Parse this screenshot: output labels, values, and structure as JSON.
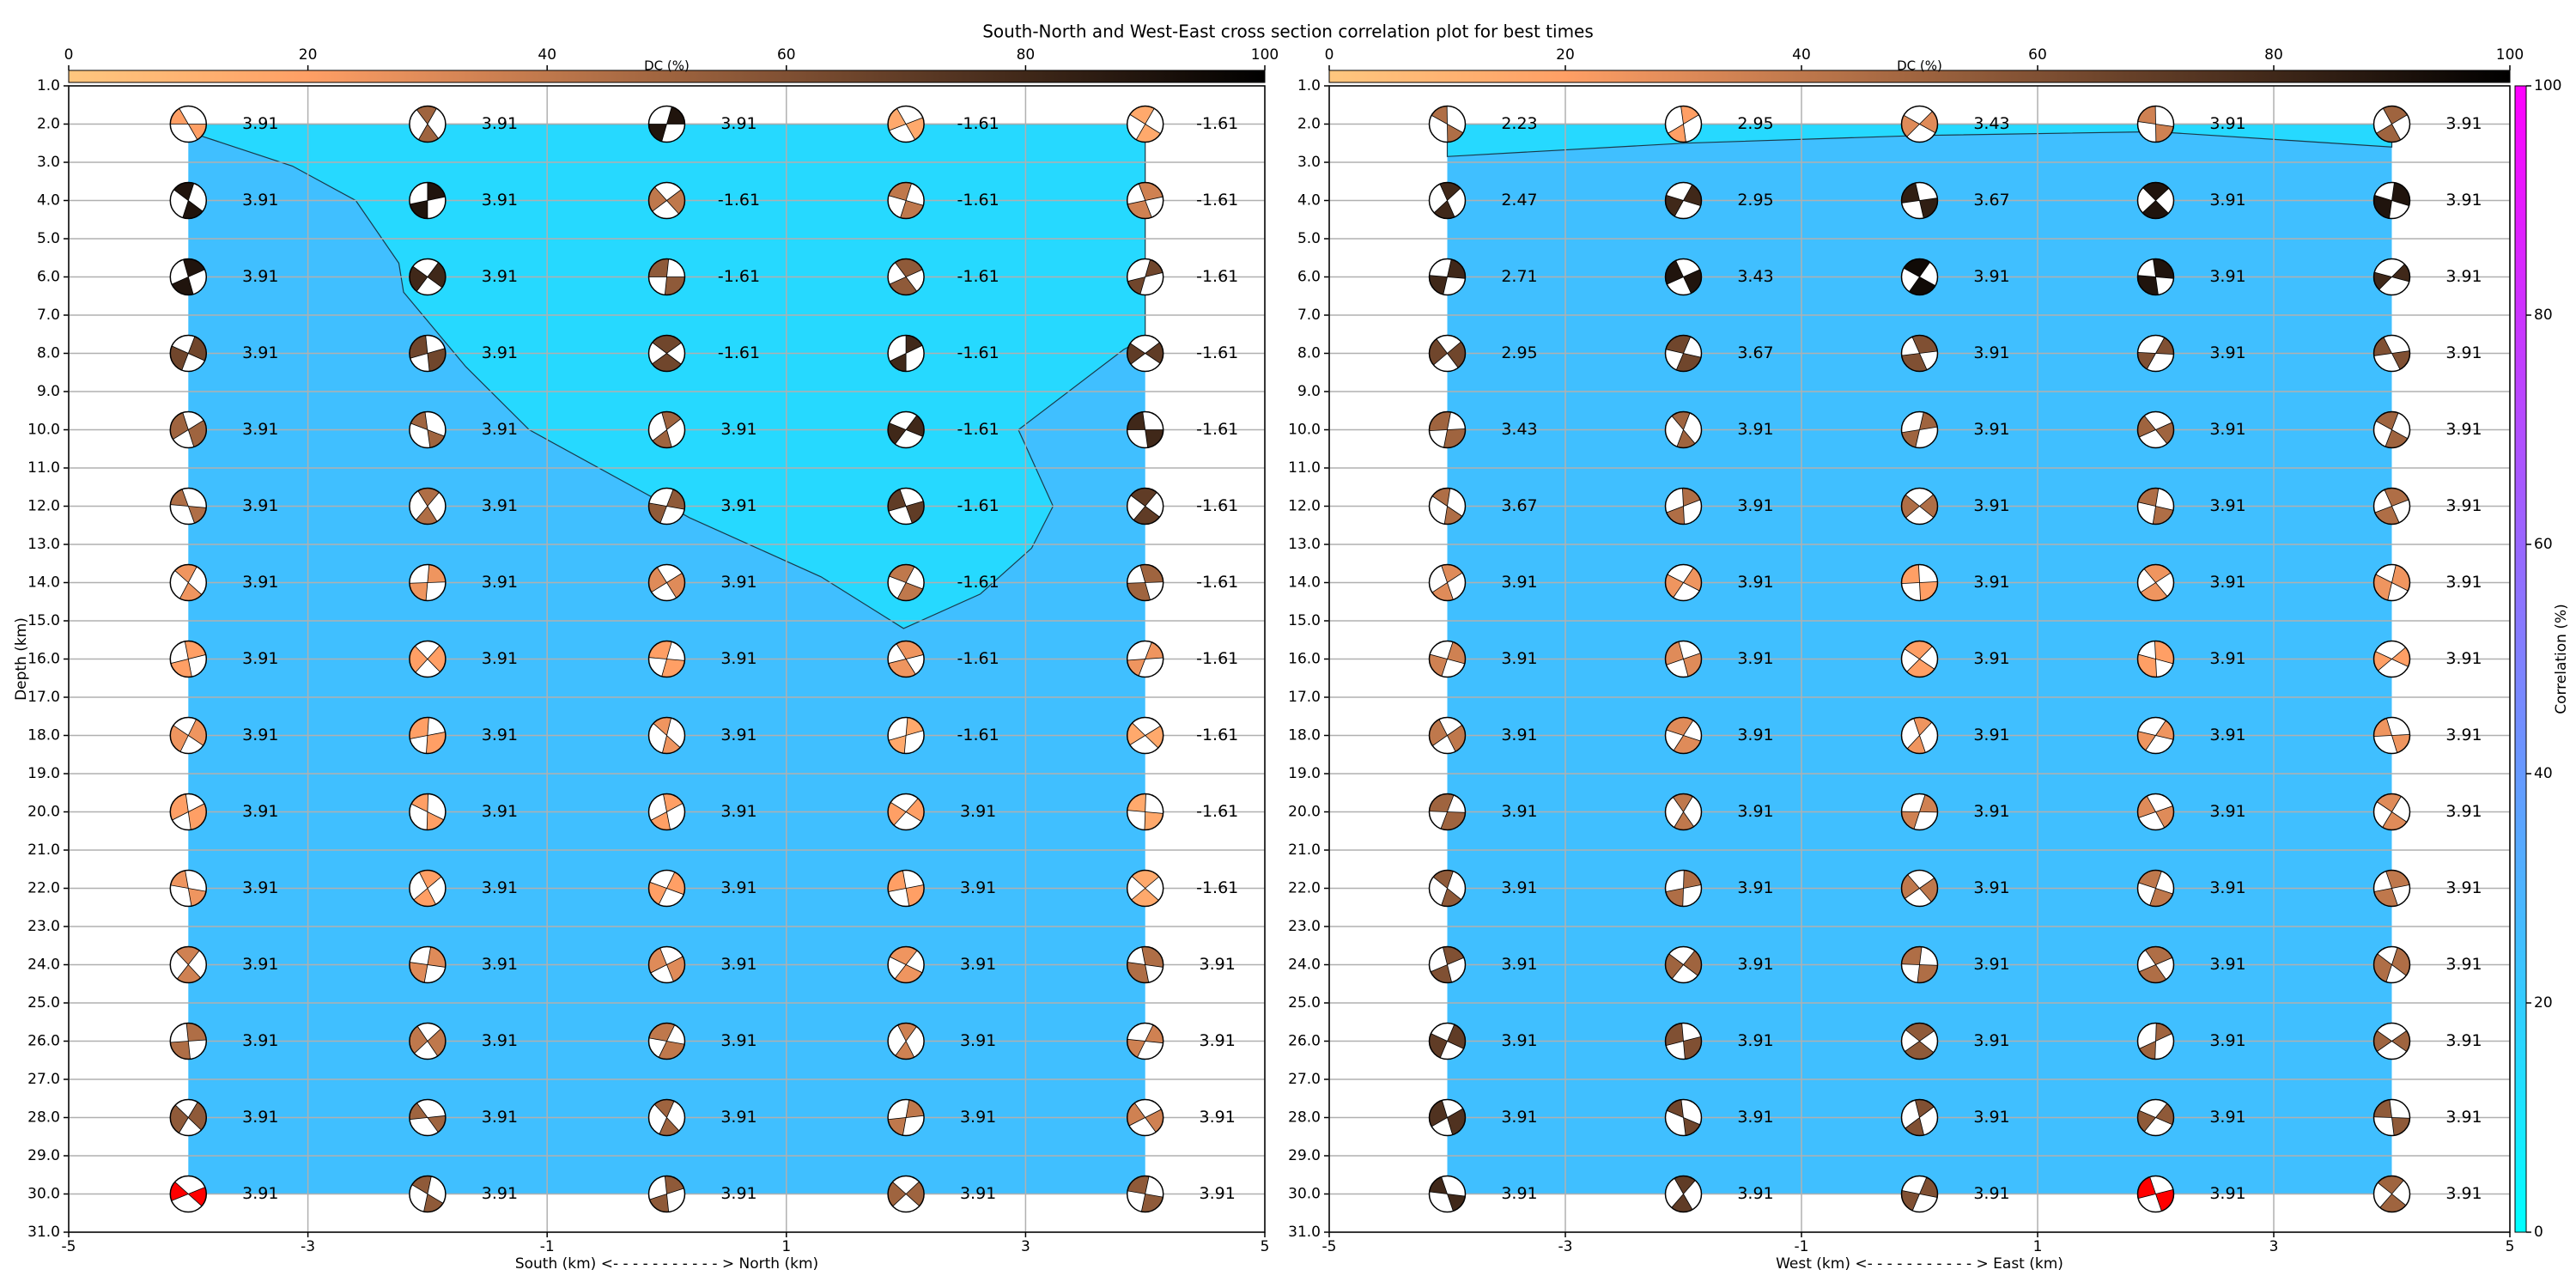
{
  "title": "South-North and West-East cross section correlation plot for best times",
  "correlation_colorbar": {
    "label": "Correlation (%)",
    "lim": [
      0,
      100
    ],
    "ticks": [
      0,
      20,
      40,
      60,
      80,
      100
    ],
    "cmap": "cool"
  },
  "chart_data": [
    {
      "type": "beachball-section",
      "xlabel": "South (km) <- - - - - - - - - - - > North (km)",
      "ylabel": "Depth (km)",
      "xlim": [
        -5,
        5
      ],
      "xticks": [
        -5,
        -3,
        -1,
        1,
        3,
        5
      ],
      "ylim": [
        31,
        1
      ],
      "yticks": [
        {
          "value": 1,
          "label": "1.0"
        },
        {
          "value": 2,
          "label": "2.0"
        },
        {
          "value": 3,
          "label": "3.0"
        },
        {
          "value": 4,
          "label": "4.0"
        },
        {
          "value": 5,
          "label": "5.0"
        },
        {
          "value": 6,
          "label": "6.0"
        },
        {
          "value": 7,
          "label": "7.0"
        },
        {
          "value": 8,
          "label": "8.0"
        },
        {
          "value": 9,
          "label": "9.0"
        },
        {
          "value": 10,
          "label": "10.0"
        },
        {
          "value": 11,
          "label": "11.0"
        },
        {
          "value": 12,
          "label": "12.0"
        },
        {
          "value": 13,
          "label": "13.0"
        },
        {
          "value": 14,
          "label": "14.0"
        },
        {
          "value": 15,
          "label": "15.0"
        },
        {
          "value": 16,
          "label": "16.0"
        },
        {
          "value": 17,
          "label": "17.0"
        },
        {
          "value": 18,
          "label": "18.0"
        },
        {
          "value": 19,
          "label": "19.0"
        },
        {
          "value": 20,
          "label": "20.0"
        },
        {
          "value": 21,
          "label": "21.0"
        },
        {
          "value": 22,
          "label": "22.0"
        },
        {
          "value": 23,
          "label": "23.0"
        },
        {
          "value": 24,
          "label": "24.0"
        },
        {
          "value": 25,
          "label": "25.0"
        },
        {
          "value": 26,
          "label": "26.0"
        },
        {
          "value": 27,
          "label": "27.0"
        },
        {
          "value": 28,
          "label": "28.0"
        },
        {
          "value": 29,
          "label": "29.0"
        },
        {
          "value": 30,
          "label": "30.0"
        },
        {
          "value": 31,
          "label": "31.0"
        }
      ],
      "grid": true,
      "dc_colorbar": {
        "label": "DC (%)",
        "lim": [
          0,
          100
        ],
        "ticks": [
          0,
          20,
          40,
          60,
          80,
          100
        ],
        "cmap": "copper_r"
      },
      "field": {
        "xlim": [
          -4,
          4
        ],
        "ylim": [
          30,
          2
        ],
        "value": 25,
        "regions": [
          {
            "value": 15,
            "x": [
              -4,
              -4,
              -3.13,
              -2.6,
              -2.24,
              -2.2,
              -1.68,
              -1.15,
              0.19,
              1.29,
              1.98,
              2.62,
              3.05,
              3.23,
              2.94,
              3.82,
              4,
              4
            ],
            "y": [
              2,
              2.2,
              3.1,
              4.0,
              5.64,
              6.4,
              8.35,
              10.0,
              12.3,
              13.85,
              15.2,
              14.3,
              13.1,
              12.0,
              10.0,
              7.9,
              7.6,
              2
            ]
          }
        ]
      },
      "x": [
        -4,
        -2,
        0,
        2,
        4
      ],
      "depths": [
        2,
        4,
        6,
        8,
        10,
        12,
        14,
        16,
        18,
        20,
        22,
        24,
        26,
        28,
        30
      ],
      "labels": [
        [
          3.91,
          3.91,
          3.91,
          -1.61,
          -1.61
        ],
        [
          3.91,
          3.91,
          -1.61,
          -1.61,
          -1.61
        ],
        [
          3.91,
          3.91,
          -1.61,
          -1.61,
          -1.61
        ],
        [
          3.91,
          3.91,
          -1.61,
          -1.61,
          -1.61
        ],
        [
          3.91,
          3.91,
          3.91,
          -1.61,
          -1.61
        ],
        [
          3.91,
          3.91,
          3.91,
          -1.61,
          -1.61
        ],
        [
          3.91,
          3.91,
          3.91,
          -1.61,
          -1.61
        ],
        [
          3.91,
          3.91,
          3.91,
          -1.61,
          -1.61
        ],
        [
          3.91,
          3.91,
          3.91,
          -1.61,
          -1.61
        ],
        [
          3.91,
          3.91,
          3.91,
          3.91,
          -1.61
        ],
        [
          3.91,
          3.91,
          3.91,
          3.91,
          -1.61
        ],
        [
          3.91,
          3.91,
          3.91,
          3.91,
          3.91
        ],
        [
          3.91,
          3.91,
          3.91,
          3.91,
          3.91
        ],
        [
          3.91,
          3.91,
          3.91,
          3.91,
          3.91
        ],
        [
          3.91,
          3.91,
          3.91,
          3.91,
          3.91
        ]
      ],
      "dc": [
        [
          20,
          50,
          90,
          15,
          15
        ],
        [
          90,
          90,
          40,
          40,
          35
        ],
        [
          90,
          80,
          55,
          55,
          65
        ],
        [
          65,
          65,
          65,
          80,
          70
        ],
        [
          50,
          50,
          50,
          80,
          80
        ],
        [
          45,
          45,
          55,
          70,
          70
        ],
        [
          25,
          25,
          30,
          40,
          50
        ],
        [
          20,
          20,
          20,
          25,
          25
        ],
        [
          25,
          20,
          25,
          15,
          15
        ],
        [
          20,
          20,
          20,
          20,
          15
        ],
        [
          25,
          20,
          20,
          20,
          15
        ],
        [
          35,
          30,
          30,
          25,
          45
        ],
        [
          45,
          40,
          40,
          35,
          35
        ],
        [
          55,
          50,
          50,
          40,
          35
        ],
        [
          50,
          55,
          55,
          50,
          55
        ]
      ],
      "best": {
        "row": 14,
        "col": 0
      },
      "best_color": "#ff0000"
    },
    {
      "type": "beachball-section",
      "xlabel": "West (km) <- - - - - - - - - - - > East (km)",
      "xlim": [
        -5,
        5
      ],
      "xticks": [
        -5,
        -3,
        -1,
        1,
        3,
        5
      ],
      "ylim": [
        31,
        1
      ],
      "yticks": [
        {
          "value": 1,
          "label": "1.0"
        },
        {
          "value": 2,
          "label": "2.0"
        },
        {
          "value": 3,
          "label": "3.0"
        },
        {
          "value": 4,
          "label": "4.0"
        },
        {
          "value": 5,
          "label": "5.0"
        },
        {
          "value": 6,
          "label": "6.0"
        },
        {
          "value": 7,
          "label": "7.0"
        },
        {
          "value": 8,
          "label": "8.0"
        },
        {
          "value": 9,
          "label": "9.0"
        },
        {
          "value": 10,
          "label": "10.0"
        },
        {
          "value": 11,
          "label": "11.0"
        },
        {
          "value": 12,
          "label": "12.0"
        },
        {
          "value": 13,
          "label": "13.0"
        },
        {
          "value": 14,
          "label": "14.0"
        },
        {
          "value": 15,
          "label": "15.0"
        },
        {
          "value": 16,
          "label": "16.0"
        },
        {
          "value": 17,
          "label": "17.0"
        },
        {
          "value": 18,
          "label": "18.0"
        },
        {
          "value": 19,
          "label": "19.0"
        },
        {
          "value": 20,
          "label": "20.0"
        },
        {
          "value": 21,
          "label": "21.0"
        },
        {
          "value": 22,
          "label": "22.0"
        },
        {
          "value": 23,
          "label": "23.0"
        },
        {
          "value": 24,
          "label": "24.0"
        },
        {
          "value": 25,
          "label": "25.0"
        },
        {
          "value": 26,
          "label": "26.0"
        },
        {
          "value": 27,
          "label": "27.0"
        },
        {
          "value": 28,
          "label": "28.0"
        },
        {
          "value": 29,
          "label": "29.0"
        },
        {
          "value": 30,
          "label": "30.0"
        },
        {
          "value": 31,
          "label": "31.0"
        }
      ],
      "grid": true,
      "dc_colorbar": {
        "label": "DC (%)",
        "lim": [
          0,
          100
        ],
        "ticks": [
          0,
          20,
          40,
          60,
          80,
          100
        ],
        "cmap": "copper_r"
      },
      "field": {
        "xlim": [
          -4,
          4
        ],
        "ylim": [
          30,
          2
        ],
        "value": 25,
        "regions": [
          {
            "value": 15,
            "x": [
              -4,
              4,
              4,
              2,
              0,
              -2,
              -4
            ],
            "y": [
              2,
              2,
              2.6,
              2.2,
              2.3,
              2.5,
              2.85
            ]
          }
        ]
      },
      "x": [
        -4,
        -2,
        0,
        2,
        4
      ],
      "depths": [
        2,
        4,
        6,
        8,
        10,
        12,
        14,
        16,
        18,
        20,
        22,
        24,
        26,
        28,
        30
      ],
      "labels": [
        [
          2.23,
          2.95,
          3.43,
          3.91,
          3.91
        ],
        [
          2.47,
          2.95,
          3.67,
          3.91,
          3.91
        ],
        [
          2.71,
          3.43,
          3.91,
          3.91,
          3.91
        ],
        [
          2.95,
          3.67,
          3.91,
          3.91,
          3.91
        ],
        [
          3.43,
          3.91,
          3.91,
          3.91,
          3.91
        ],
        [
          3.67,
          3.91,
          3.91,
          3.91,
          3.91
        ],
        [
          3.91,
          3.91,
          3.91,
          3.91,
          3.91
        ],
        [
          3.91,
          3.91,
          3.91,
          3.91,
          3.91
        ],
        [
          3.91,
          3.91,
          3.91,
          3.91,
          3.91
        ],
        [
          3.91,
          3.91,
          3.91,
          3.91,
          3.91
        ],
        [
          3.91,
          3.91,
          3.91,
          3.91,
          3.91
        ],
        [
          3.91,
          3.91,
          3.91,
          3.91,
          3.91
        ],
        [
          3.91,
          3.91,
          3.91,
          3.91,
          3.91
        ],
        [
          3.91,
          3.91,
          3.91,
          3.91,
          3.91
        ],
        [
          3.91,
          3.91,
          3.91,
          3.91,
          3.91
        ]
      ],
      "dc": [
        [
          45,
          20,
          30,
          35,
          50
        ],
        [
          80,
          80,
          85,
          90,
          90
        ],
        [
          80,
          90,
          95,
          90,
          80
        ],
        [
          65,
          65,
          60,
          60,
          60
        ],
        [
          50,
          50,
          50,
          50,
          50
        ],
        [
          45,
          45,
          45,
          45,
          45
        ],
        [
          30,
          25,
          20,
          25,
          25
        ],
        [
          35,
          30,
          20,
          20,
          20
        ],
        [
          40,
          30,
          25,
          25,
          25
        ],
        [
          50,
          40,
          35,
          30,
          30
        ],
        [
          55,
          45,
          40,
          40,
          40
        ],
        [
          60,
          50,
          45,
          45,
          45
        ],
        [
          70,
          60,
          55,
          50,
          50
        ],
        [
          75,
          65,
          60,
          55,
          55
        ],
        [
          80,
          70,
          60,
          50,
          50
        ]
      ],
      "best": {
        "row": 14,
        "col": 3
      },
      "best_color": "#ff0000"
    }
  ]
}
